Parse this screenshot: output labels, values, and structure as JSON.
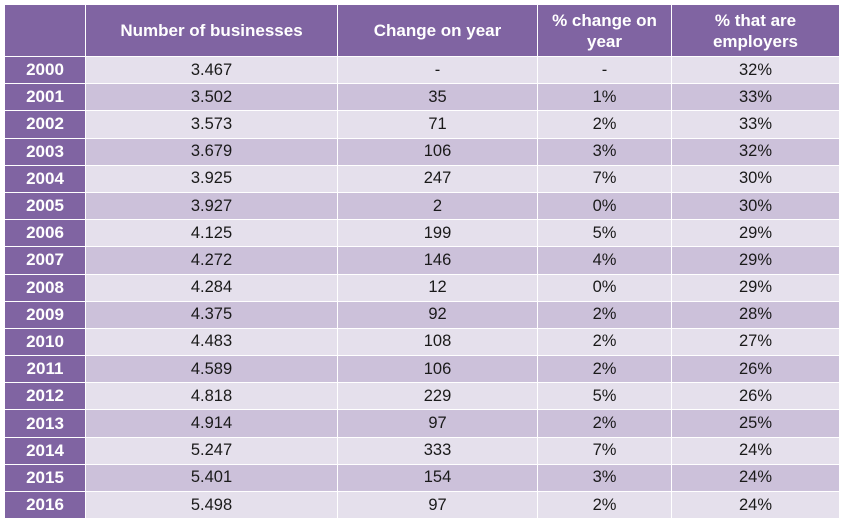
{
  "headers": [
    "",
    "Number of businesses",
    "Change on year",
    "% change on year",
    "% that are employers"
  ],
  "rows": [
    {
      "year": "2000",
      "businesses": "3.467",
      "change": "-",
      "pct_change": "-",
      "employers": "32%"
    },
    {
      "year": "2001",
      "businesses": "3.502",
      "change": "35",
      "pct_change": "1%",
      "employers": "33%"
    },
    {
      "year": "2002",
      "businesses": "3.573",
      "change": "71",
      "pct_change": "2%",
      "employers": "33%"
    },
    {
      "year": "2003",
      "businesses": "3.679",
      "change": "106",
      "pct_change": "3%",
      "employers": "32%"
    },
    {
      "year": "2004",
      "businesses": "3.925",
      "change": "247",
      "pct_change": "7%",
      "employers": "30%"
    },
    {
      "year": "2005",
      "businesses": "3.927",
      "change": "2",
      "pct_change": "0%",
      "employers": "30%"
    },
    {
      "year": "2006",
      "businesses": "4.125",
      "change": "199",
      "pct_change": "5%",
      "employers": "29%"
    },
    {
      "year": "2007",
      "businesses": "4.272",
      "change": "146",
      "pct_change": "4%",
      "employers": "29%"
    },
    {
      "year": "2008",
      "businesses": "4.284",
      "change": "12",
      "pct_change": "0%",
      "employers": "29%"
    },
    {
      "year": "2009",
      "businesses": "4.375",
      "change": "92",
      "pct_change": "2%",
      "employers": "28%"
    },
    {
      "year": "2010",
      "businesses": "4.483",
      "change": "108",
      "pct_change": "2%",
      "employers": "27%"
    },
    {
      "year": "2011",
      "businesses": "4.589",
      "change": "106",
      "pct_change": "2%",
      "employers": "26%"
    },
    {
      "year": "2012",
      "businesses": "4.818",
      "change": "229",
      "pct_change": "5%",
      "employers": "26%"
    },
    {
      "year": "2013",
      "businesses": "4.914",
      "change": "97",
      "pct_change": "2%",
      "employers": "25%"
    },
    {
      "year": "2014",
      "businesses": "5.247",
      "change": "333",
      "pct_change": "7%",
      "employers": "24%"
    },
    {
      "year": "2015",
      "businesses": "5.401",
      "change": "154",
      "pct_change": "3%",
      "employers": "24%"
    },
    {
      "year": "2016",
      "businesses": "5.498",
      "change": "97",
      "pct_change": "2%",
      "employers": "24%"
    }
  ],
  "colors": {
    "header": "#8064a2",
    "band_dark": "#ccc1da",
    "band_light": "#e5e0ec"
  }
}
